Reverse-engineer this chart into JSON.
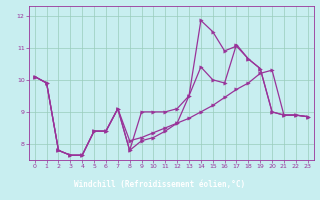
{
  "xlabel": "Windchill (Refroidissement éolien,°C)",
  "xlim": [
    -0.5,
    23.5
  ],
  "ylim": [
    7.5,
    12.3
  ],
  "yticks": [
    8,
    9,
    10,
    11,
    12
  ],
  "xticks": [
    0,
    1,
    2,
    3,
    4,
    5,
    6,
    7,
    8,
    9,
    10,
    11,
    12,
    13,
    14,
    15,
    16,
    17,
    18,
    19,
    20,
    21,
    22,
    23
  ],
  "bg_color": "#c8eef0",
  "grid_color": "#99ccbb",
  "line_color": "#993399",
  "xlabel_bg": "#7755aa",
  "xlabel_fg": "#ffffff",
  "line1": [
    10.1,
    9.9,
    7.8,
    7.65,
    7.65,
    8.4,
    8.4,
    9.1,
    7.8,
    9.0,
    9.0,
    9.0,
    9.1,
    9.5,
    10.4,
    10.0,
    9.9,
    11.1,
    10.65,
    10.35,
    9.0,
    8.9,
    8.9,
    8.85
  ],
  "line2": [
    10.1,
    9.9,
    7.8,
    7.65,
    7.65,
    8.4,
    8.4,
    9.1,
    8.1,
    8.2,
    8.35,
    8.5,
    8.65,
    8.8,
    9.0,
    9.2,
    9.45,
    9.7,
    9.9,
    10.2,
    10.3,
    8.9,
    8.9,
    8.85
  ],
  "line3": [
    10.1,
    9.9,
    7.8,
    7.65,
    7.65,
    8.4,
    8.4,
    9.1,
    7.8,
    8.1,
    8.2,
    8.4,
    8.65,
    9.5,
    11.85,
    11.5,
    10.9,
    11.05,
    10.65,
    10.35,
    9.0,
    8.9,
    8.9,
    8.85
  ],
  "markersize": 2.5,
  "linewidth": 0.9
}
